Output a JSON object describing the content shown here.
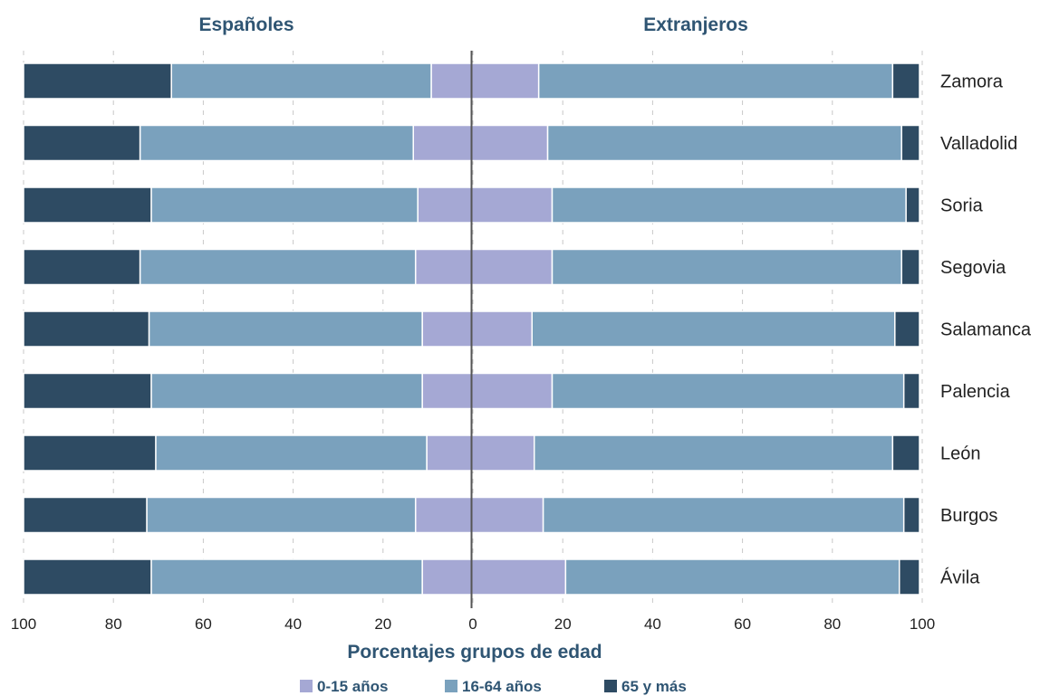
{
  "chart_data": {
    "type": "bar",
    "orientation": "horizontal",
    "layout": "population-pyramid",
    "panels": [
      {
        "name": "Españoles",
        "side": "left"
      },
      {
        "name": "Extranjeros",
        "side": "right"
      }
    ],
    "xlabel": "Porcentajes grupos de edad",
    "xlim": [
      0,
      100
    ],
    "xticks": [
      "100",
      "80",
      "60",
      "40",
      "20",
      "0",
      "20",
      "40",
      "60",
      "80",
      "100"
    ],
    "grid": true,
    "legend_position": "bottom",
    "categories": [
      "Zamora",
      "Valladolid",
      "Soria",
      "Segovia",
      "Salamanca",
      "Palencia",
      "León",
      "Burgos",
      "Ávila"
    ],
    "series": [
      {
        "name": "0-15 años",
        "color": "#a5a8d4",
        "espanoles": [
          9,
          13,
          12,
          12.5,
          11,
          11,
          10,
          12.5,
          11
        ],
        "extranjeros": [
          15,
          17,
          18,
          18,
          13.5,
          18,
          14,
          16,
          21
        ]
      },
      {
        "name": "16-64 años",
        "color": "#7aa1bd",
        "espanoles": [
          58,
          61,
          59.5,
          61.5,
          61,
          60.5,
          60.5,
          60,
          60.5
        ],
        "extranjeros": [
          79,
          79,
          79,
          78,
          81,
          78.5,
          80,
          80.5,
          74.5
        ]
      },
      {
        "name": "65 y más",
        "color": "#2e4b63",
        "espanoles": [
          33,
          26,
          28.5,
          26,
          28,
          28.5,
          29.5,
          27.5,
          28.5
        ],
        "extranjeros": [
          6,
          4,
          3,
          4,
          5.5,
          3.5,
          6,
          3.5,
          4.5
        ]
      }
    ]
  }
}
